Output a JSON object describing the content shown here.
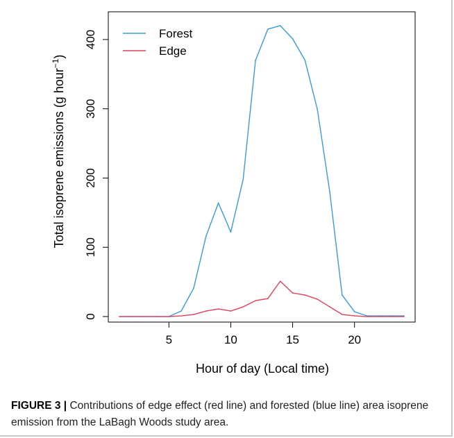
{
  "caption": {
    "label": "FIGURE 3 |",
    "text": " Contributions of edge effect (red line) and forested (blue line) area isoprene emission from the LaBagh Woods study area."
  },
  "chart_data": {
    "type": "line",
    "title": "",
    "xlabel": "Hour of day (Local time)",
    "ylabel_prefix": "Total isoprene emissions  (g hour",
    "ylabel_sup": "−1",
    "ylabel_suffix": ")",
    "xlim": [
      0.1,
      24.9
    ],
    "ylim": [
      -8,
      440
    ],
    "xticks": [
      5,
      10,
      15,
      20
    ],
    "yticks": [
      0,
      100,
      200,
      300,
      400
    ],
    "grid": false,
    "legend_position": "top-left",
    "x": [
      1,
      2,
      3,
      4,
      5,
      6,
      7,
      8,
      9,
      10,
      11,
      12,
      13,
      14,
      15,
      16,
      17,
      18,
      19,
      20,
      21,
      22,
      23,
      24
    ],
    "series": [
      {
        "name": "Forest",
        "color": "#3a9ad9",
        "values": [
          0,
          0,
          0,
          0,
          0,
          8,
          41,
          116,
          164,
          122,
          198,
          370,
          415,
          420,
          401,
          370,
          299,
          180,
          31,
          7,
          1,
          1,
          1,
          1
        ]
      },
      {
        "name": "Edge",
        "color": "#e0405a",
        "values": [
          0,
          0,
          0,
          0,
          0,
          1,
          3,
          8,
          11,
          8,
          14,
          23,
          26,
          51,
          34,
          31,
          25,
          14,
          3,
          1,
          0,
          0,
          0,
          0
        ]
      }
    ]
  }
}
